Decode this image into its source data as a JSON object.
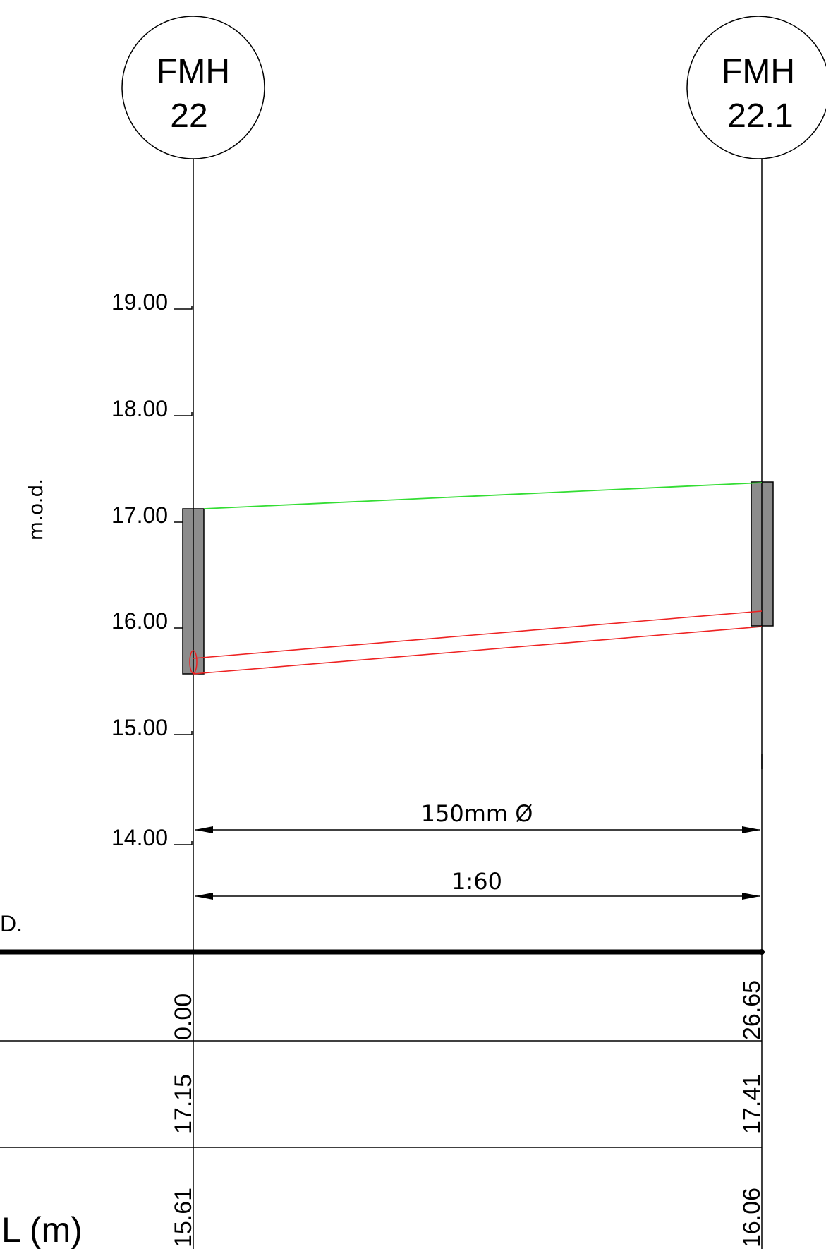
{
  "manholes": [
    {
      "label_line1": "FMH",
      "label_line2": "22",
      "chainage": "0.00",
      "cover_level": "17.15",
      "invert_level": "15.61"
    },
    {
      "label_line1": "FMH",
      "label_line2": "22.1",
      "chainage": "26.65",
      "cover_level": "17.41",
      "invert_level": "16.06"
    }
  ],
  "axis": {
    "label": "m.o.d.",
    "ticks": [
      "19.00",
      "18.00",
      "17.00",
      "16.00",
      "15.00",
      "14.00"
    ]
  },
  "pipe": {
    "diameter_label": "150mm Ø",
    "gradient_label": "1:60"
  },
  "table": {
    "datum_label_fragment": "D.",
    "row_label_fragment": "L (m)"
  },
  "colors": {
    "ground_line": "#33dd33",
    "pipe": "#ee2222",
    "manhole_wall": "#8c8c8c",
    "line": "#000000"
  },
  "chart_data": {
    "type": "diagram",
    "ylabel": "m.o.d.",
    "yticks": [
      19,
      18,
      17,
      16,
      15,
      14
    ],
    "points": [
      {
        "x": 0.0,
        "cover": 17.15,
        "invert": 15.61
      },
      {
        "x": 26.65,
        "cover": 17.41,
        "invert": 16.06
      }
    ]
  }
}
